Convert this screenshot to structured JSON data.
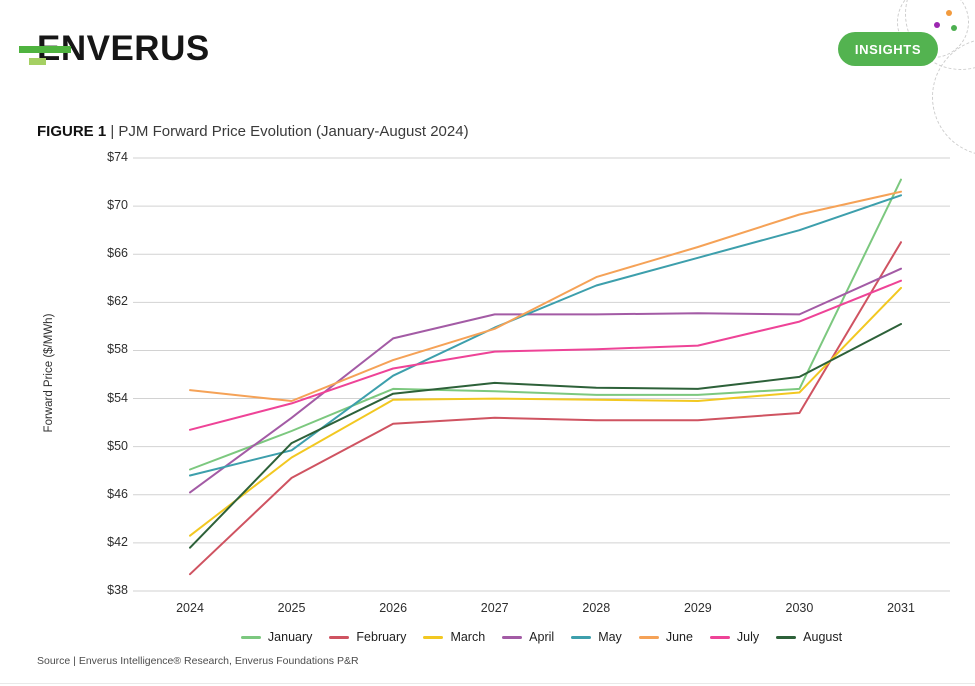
{
  "header": {
    "logo_text": "ENVERUS",
    "insights_label": "INSIGHTS",
    "brand_green": "#53b350",
    "logo_green": "#4fb33f",
    "logo_light_green": "#a5d063"
  },
  "decoration": {
    "dot_colors": {
      "orange": "#f29a3d",
      "purple": "#9c27b0",
      "green": "#4caf50"
    }
  },
  "figure": {
    "label": "FIGURE 1",
    "title": "| PJM Forward Price Evolution (January-August 2024)"
  },
  "chart_data": {
    "type": "line",
    "x": [
      2024,
      2025,
      2026,
      2027,
      2028,
      2029,
      2030,
      2031
    ],
    "ylabel": "Forward Price ($/MWh)",
    "ylim": [
      38,
      74
    ],
    "ytick_step": 4,
    "ytick_prefix": "$",
    "grid": "horizontal-only",
    "legend_position": "bottom",
    "series": [
      {
        "name": "January",
        "color": "#7cc87f",
        "values": [
          48.1,
          51.3,
          54.8,
          54.6,
          54.3,
          54.3,
          54.8,
          72.2
        ]
      },
      {
        "name": "February",
        "color": "#cf5361",
        "values": [
          39.4,
          47.4,
          51.9,
          52.4,
          52.2,
          52.2,
          52.8,
          67.0
        ]
      },
      {
        "name": "March",
        "color": "#f2c821",
        "values": [
          42.6,
          49.1,
          53.9,
          54.0,
          53.9,
          53.8,
          54.5,
          63.2
        ]
      },
      {
        "name": "April",
        "color": "#a35ba5",
        "values": [
          46.2,
          52.4,
          59.0,
          61.0,
          61.0,
          61.1,
          61.0,
          64.8
        ]
      },
      {
        "name": "May",
        "color": "#3d9fac",
        "values": [
          47.6,
          49.7,
          55.9,
          59.9,
          63.4,
          65.7,
          68.0,
          70.9
        ]
      },
      {
        "name": "June",
        "color": "#f5a257",
        "values": [
          54.7,
          53.8,
          57.2,
          59.8,
          64.1,
          66.6,
          69.3,
          71.2
        ]
      },
      {
        "name": "July",
        "color": "#ee4397",
        "values": [
          51.4,
          53.6,
          56.5,
          57.9,
          58.1,
          58.4,
          60.4,
          63.8
        ]
      },
      {
        "name": "August",
        "color": "#2d6139",
        "values": [
          41.6,
          50.3,
          54.4,
          55.3,
          54.9,
          54.8,
          55.8,
          60.2
        ]
      }
    ]
  },
  "footer": {
    "source": "Source | Enverus Intelligence® Research, Enverus Foundations P&R"
  }
}
